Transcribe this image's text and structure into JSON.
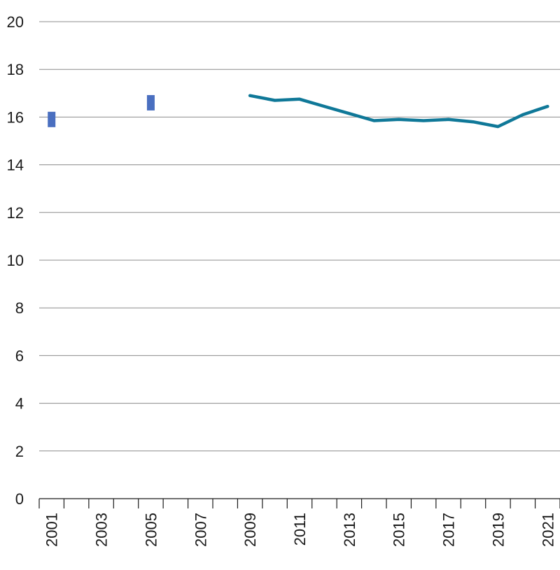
{
  "chart_data": {
    "type": "line",
    "title": "",
    "xlabel": "",
    "ylabel": "",
    "ylim": [
      0,
      20
    ],
    "yticks": [
      "0",
      "2",
      "4",
      "6",
      "8",
      "10",
      "12",
      "14",
      "16",
      "18",
      "20"
    ],
    "x_tick_labels": [
      "2001",
      "2003",
      "2005",
      "2007",
      "2009",
      "2011",
      "2013",
      "2015",
      "2017",
      "2019",
      "2021"
    ],
    "years": [
      2001,
      2002,
      2003,
      2004,
      2005,
      2006,
      2007,
      2008,
      2009,
      2010,
      2011,
      2012,
      2013,
      2014,
      2015,
      2016,
      2017,
      2018,
      2019,
      2020,
      2021
    ],
    "grid": true,
    "colors": {
      "line": "#0f7898",
      "marker": "#4a6fc0",
      "grid": "#8c8c8c",
      "axis": "#1a1a1a"
    },
    "series": [
      {
        "type": "line",
        "x": [
          2009,
          2010,
          2011,
          2012,
          2013,
          2014,
          2015,
          2016,
          2017,
          2018,
          2019,
          2020,
          2021
        ],
        "values": [
          16.9,
          16.7,
          16.75,
          16.45,
          16.15,
          15.85,
          15.9,
          15.85,
          15.9,
          15.8,
          15.6,
          16.1,
          16.45
        ]
      },
      {
        "type": "point",
        "x": [
          2001,
          2005
        ],
        "values": [
          15.9,
          16.6
        ]
      }
    ]
  }
}
